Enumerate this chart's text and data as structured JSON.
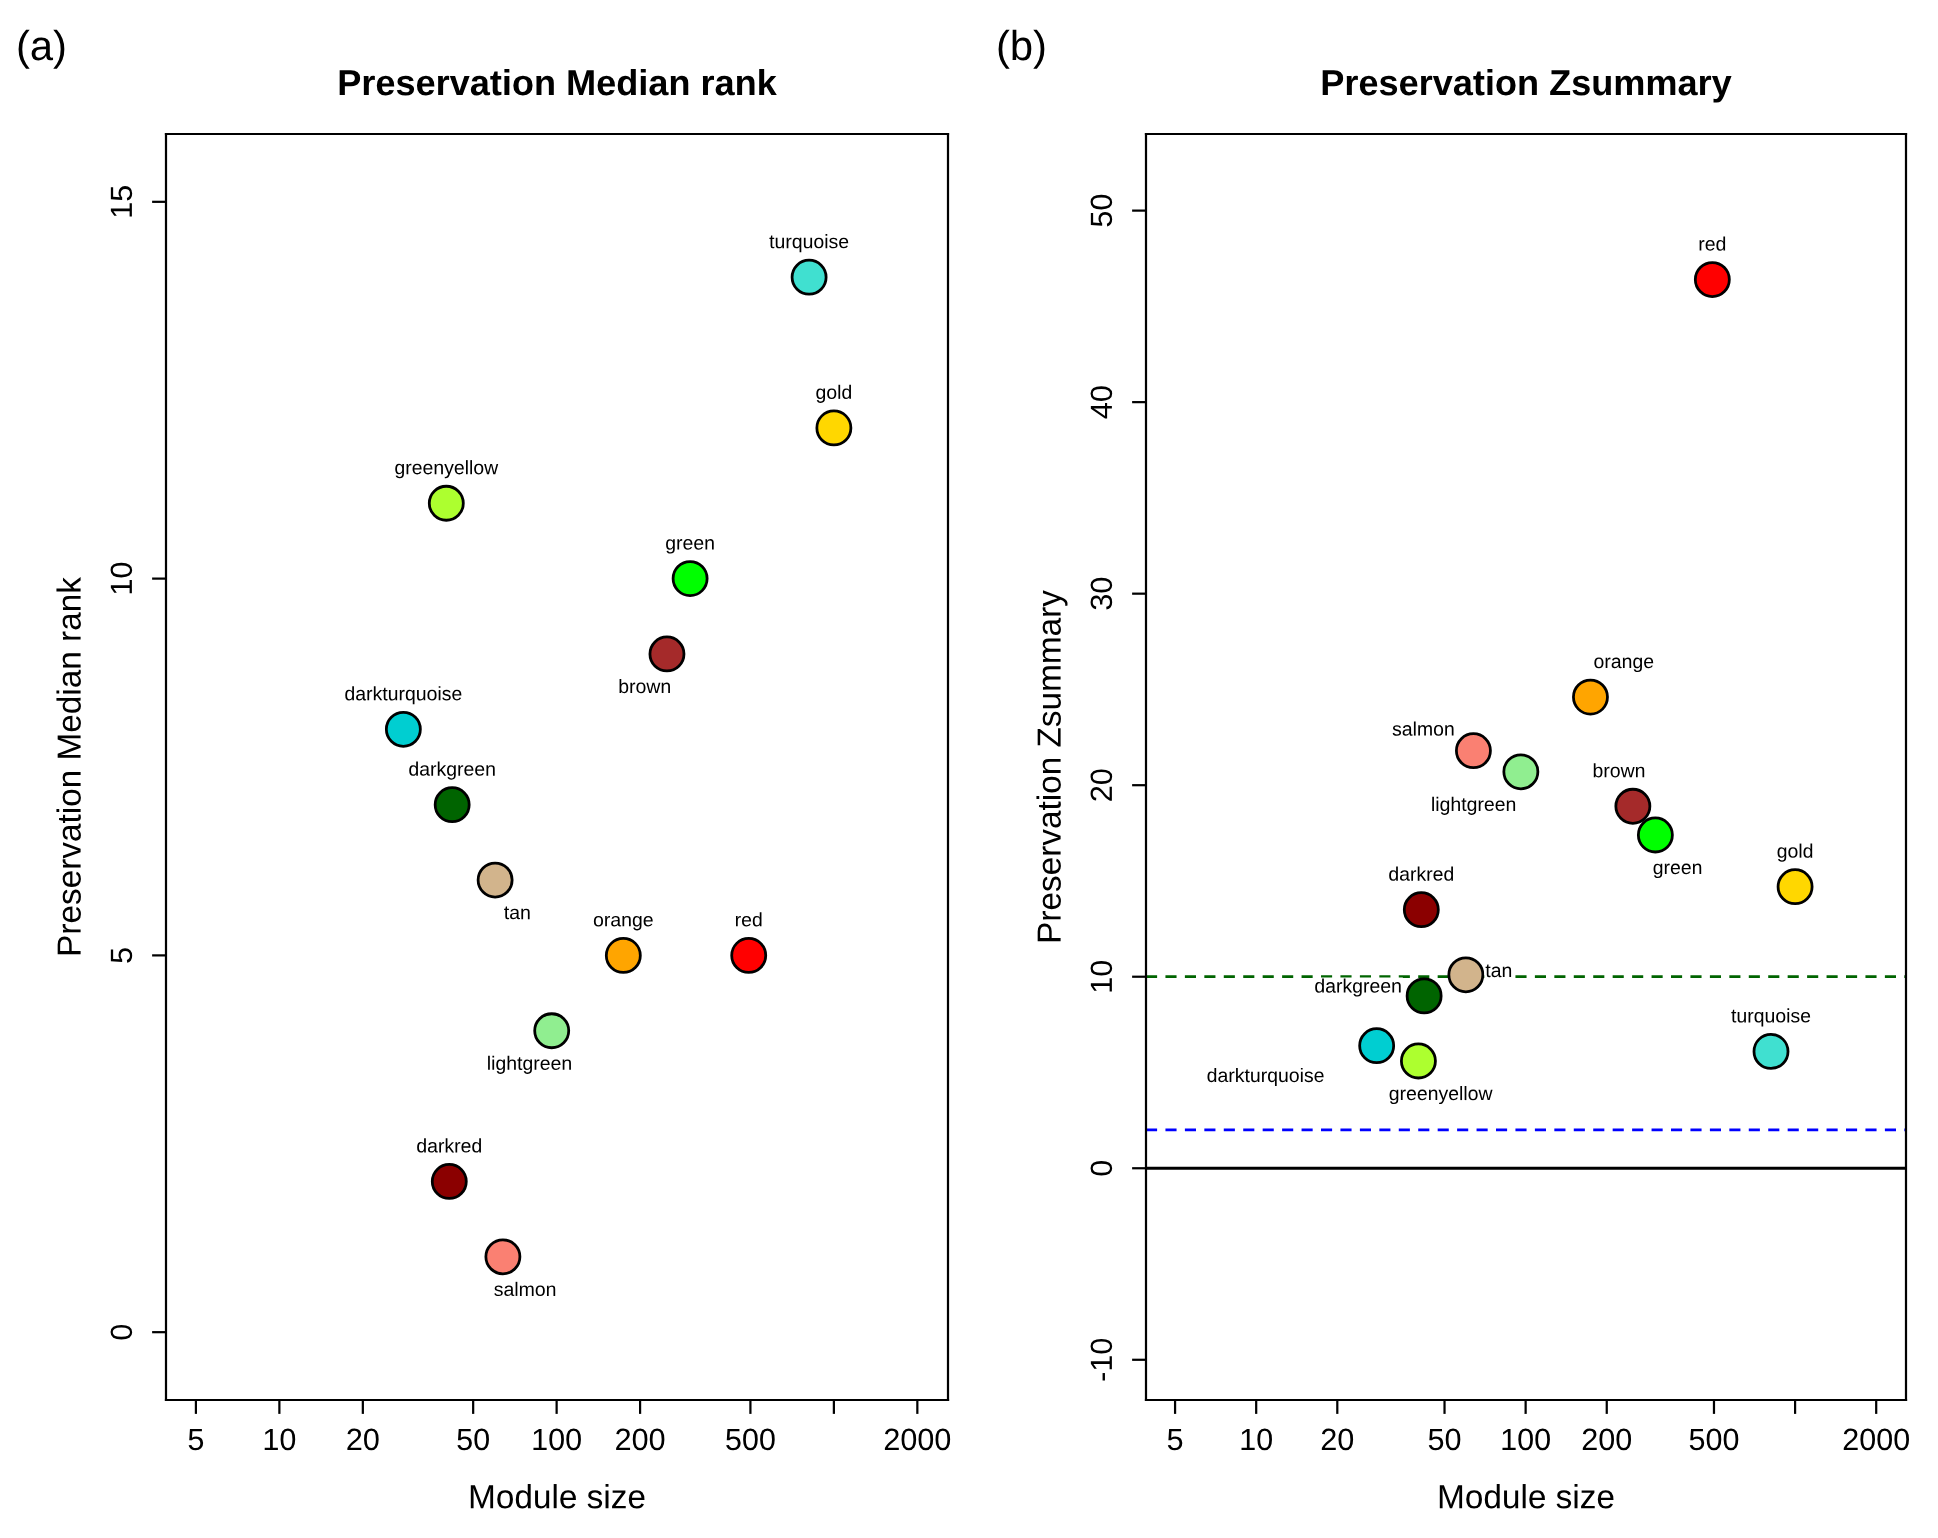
{
  "chart_data": [
    {
      "type": "scatter",
      "title": "Preservation Median rank",
      "xlabel": "Module size",
      "ylabel": "Preservation Median rank",
      "annotations": [
        "(a)"
      ],
      "log": "x",
      "marker": "circle",
      "grid": false,
      "legend": false,
      "xlim": [
        3.9,
        2580
      ],
      "xticks": [
        5,
        10,
        20,
        50,
        100,
        200,
        500,
        {
          "value": 1000,
          "label": null
        },
        2000
      ],
      "ylim": [
        -0.9,
        15.9
      ],
      "yticks": [
        0,
        5,
        10,
        15
      ],
      "series": [
        {
          "name": "turquoise",
          "color": "#40e0d0",
          "x": [
            814
          ],
          "values": [
            14
          ]
        },
        {
          "name": "gold",
          "color": "#ffd700",
          "x": [
            1000
          ],
          "values": [
            12
          ]
        },
        {
          "name": "greenyellow",
          "color": "#adff2f",
          "x": [
            40
          ],
          "values": [
            11
          ]
        },
        {
          "name": "green",
          "color": "#00ff00",
          "x": [
            303
          ],
          "values": [
            10
          ]
        },
        {
          "name": "brown",
          "color": "#a52a2a",
          "x": [
            250
          ],
          "values": [
            9
          ]
        },
        {
          "name": "darkturquoise",
          "color": "#00ced1",
          "x": [
            28
          ],
          "values": [
            8
          ]
        },
        {
          "name": "darkgreen",
          "color": "#006400",
          "x": [
            42
          ],
          "values": [
            7
          ]
        },
        {
          "name": "tan",
          "color": "#d2b48c",
          "x": [
            60
          ],
          "values": [
            6
          ]
        },
        {
          "name": "orange",
          "color": "#ffa500",
          "x": [
            174
          ],
          "values": [
            5
          ]
        },
        {
          "name": "red",
          "color": "#ff0000",
          "x": [
            493
          ],
          "values": [
            5
          ]
        },
        {
          "name": "lightgreen",
          "color": "#90ee90",
          "x": [
            96
          ],
          "values": [
            4
          ]
        },
        {
          "name": "darkred",
          "color": "#8b0000",
          "x": [
            41
          ],
          "values": [
            2
          ]
        },
        {
          "name": "salmon",
          "color": "#fa8072",
          "x": [
            64
          ],
          "values": [
            1
          ]
        }
      ]
    },
    {
      "type": "scatter",
      "title": "Preservation Zsummary",
      "xlabel": "Module size",
      "ylabel": "Preservation Zsummary",
      "annotations": [
        "(b)"
      ],
      "log": "x",
      "marker": "circle",
      "grid": false,
      "legend": false,
      "xlim": [
        3.9,
        2580
      ],
      "xticks": [
        5,
        10,
        20,
        50,
        100,
        200,
        500,
        {
          "value": 1000,
          "label": null
        },
        2000
      ],
      "ylim": [
        -12.1,
        54
      ],
      "yticks": [
        -10,
        0,
        10,
        20,
        30,
        40,
        50
      ],
      "ref_lines": [
        {
          "axis": "y",
          "value": 0,
          "color": "#000000",
          "line_style": "solid"
        },
        {
          "axis": "y",
          "value": 2,
          "color": "#0000ff",
          "line_style": "dashed"
        },
        {
          "axis": "y",
          "value": 10,
          "color": "#006400",
          "line_style": "dashed"
        }
      ],
      "series": [
        {
          "name": "turquoise",
          "color": "#40e0d0",
          "x": [
            814
          ],
          "values": [
            6.1
          ]
        },
        {
          "name": "gold",
          "color": "#ffd700",
          "x": [
            1000
          ],
          "values": [
            14.7
          ]
        },
        {
          "name": "greenyellow",
          "color": "#adff2f",
          "x": [
            40
          ],
          "values": [
            5.6
          ]
        },
        {
          "name": "green",
          "color": "#00ff00",
          "x": [
            303
          ],
          "values": [
            17.4
          ]
        },
        {
          "name": "brown",
          "color": "#a52a2a",
          "x": [
            250
          ],
          "values": [
            18.9
          ]
        },
        {
          "name": "darkturquoise",
          "color": "#00ced1",
          "x": [
            28
          ],
          "values": [
            6.4
          ]
        },
        {
          "name": "darkgreen",
          "color": "#006400",
          "x": [
            42
          ],
          "values": [
            9.0
          ]
        },
        {
          "name": "tan",
          "color": "#d2b48c",
          "x": [
            60
          ],
          "values": [
            10.1
          ]
        },
        {
          "name": "orange",
          "color": "#ffa500",
          "x": [
            174
          ],
          "values": [
            24.6
          ]
        },
        {
          "name": "red",
          "color": "#ff0000",
          "x": [
            493
          ],
          "values": [
            46.4
          ]
        },
        {
          "name": "lightgreen",
          "color": "#90ee90",
          "x": [
            96
          ],
          "values": [
            20.7
          ]
        },
        {
          "name": "darkred",
          "color": "#8b0000",
          "x": [
            41
          ],
          "values": [
            13.5
          ]
        },
        {
          "name": "salmon",
          "color": "#fa8072",
          "x": [
            64
          ],
          "values": [
            21.8
          ]
        }
      ]
    }
  ]
}
